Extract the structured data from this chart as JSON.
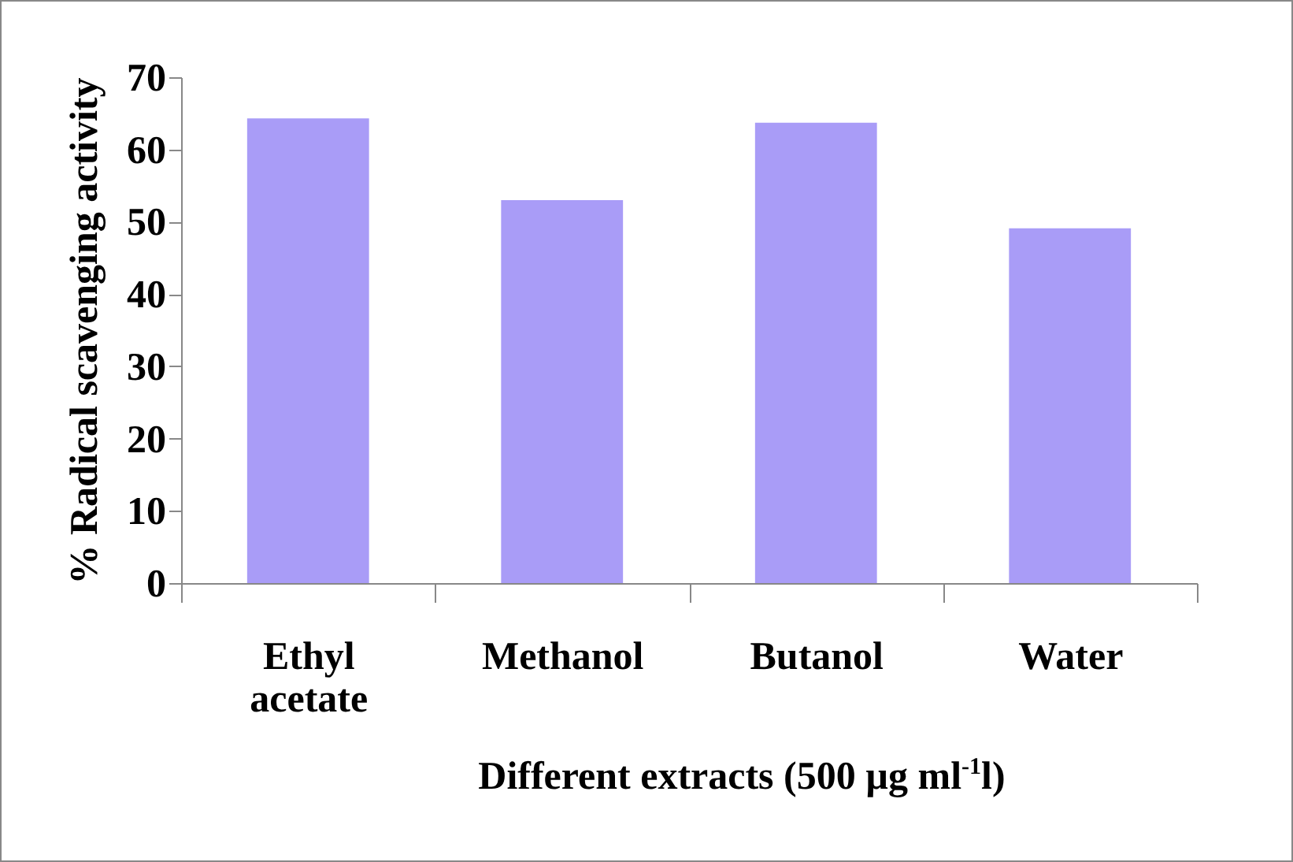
{
  "chart_data": {
    "type": "bar",
    "ylabel": "% Radical scavenging activity",
    "xlabel": "Different extracts (500 µg ml$^{-1}$l)",
    "categories": [
      "Ethyl acetate",
      "Methanol",
      "Butanol",
      "Water"
    ],
    "values": [
      64.3,
      53.0,
      63.7,
      49.1
    ],
    "color": "#a99cf7",
    "ylim": [
      0,
      70
    ],
    "yticks": [
      0,
      10,
      20,
      30,
      40,
      50,
      60,
      70
    ],
    "grid": false
  }
}
